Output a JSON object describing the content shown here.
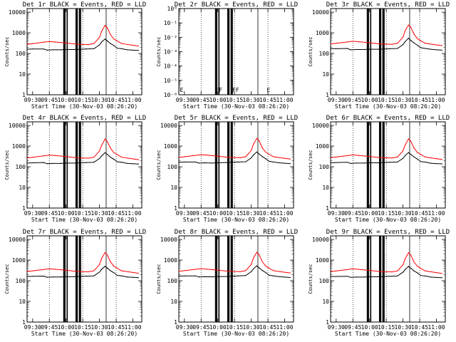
{
  "colors": {
    "background": "#ffffff",
    "events": "#000000",
    "lld": "#ff0000"
  },
  "chart_data": {
    "layout": "3x3 grid",
    "type": "line",
    "x_axis_label": "Start Time (30-Nov-03 08:26:20)",
    "y_axis_label": "Counts/sec",
    "x_ticks": [
      "09:30",
      "09:45",
      "10:00",
      "10:15",
      "10:30",
      "10:45",
      "11:00"
    ],
    "x_range": [
      "09:25",
      "11:08"
    ],
    "y_scale": "log",
    "y_range_standard": [
      1,
      15000
    ],
    "y_ticks_standard": [
      "1",
      "10",
      "100",
      "1000",
      "10000"
    ],
    "grid_lines": [
      "09:45",
      "10:15",
      "10:45"
    ],
    "legend": "in title",
    "panels": [
      {
        "title": "Det 1r BLACK = Events, RED = LLD",
        "y_ticks": [
          "1",
          "10",
          "100",
          "1000",
          "10000"
        ],
        "series": [
          {
            "name": "Events",
            "color": "#000000",
            "x": [
              "09:25",
              "09:30",
              "09:40",
              "09:43",
              "09:48",
              "09:55",
              "10:00",
              "10:08",
              "10:18",
              "10:25",
              "10:30",
              "10:32",
              "10:35",
              "10:37",
              "10:40",
              "10:43",
              "10:46",
              "10:50",
              "10:55",
              "11:00",
              "11:05"
            ],
            "values": [
              160,
              165,
              165,
              145,
              150,
              150,
              155,
              155,
              165,
              170,
              260,
              360,
              500,
              410,
              300,
              240,
              180,
              170,
              150,
              145,
              140
            ]
          },
          {
            "name": "LLD",
            "color": "#ff0000",
            "x": [
              "09:25",
              "09:30",
              "09:40",
              "09:45",
              "09:50",
              "10:00",
              "10:10",
              "10:20",
              "10:25",
              "10:30",
              "10:32",
              "10:35",
              "10:37",
              "10:40",
              "10:43",
              "10:46",
              "10:50",
              "11:00",
              "11:05"
            ],
            "values": [
              280,
              300,
              350,
              380,
              360,
              320,
              280,
              270,
              300,
              600,
              1200,
              2300,
              1800,
              800,
              500,
              400,
              300,
              250,
              230
            ]
          }
        ]
      },
      {
        "title": "Det 2r BLACK = Events, RED = LLD",
        "y_ticks": [
          "10⁻⁶",
          "10⁻⁵",
          "10⁻⁴",
          "10⁻³",
          "10⁻²",
          "10⁻¹",
          "10⁰"
        ],
        "series": [],
        "annotations": [
          "F",
          "F",
          "F",
          "F",
          "F",
          "F",
          "F",
          "F",
          "E",
          "E"
        ]
      },
      {
        "title": "Det 3r BLACK = Events, RED = LLD",
        "y_ticks": [
          "1",
          "10",
          "100",
          "1000",
          "10000"
        ],
        "series": [
          {
            "name": "Events",
            "color": "#000000",
            "x": [
              "09:25",
              "09:30",
              "09:40",
              "09:43",
              "09:48",
              "09:55",
              "10:00",
              "10:08",
              "10:18",
              "10:25",
              "10:30",
              "10:32",
              "10:35",
              "10:37",
              "10:40",
              "10:43",
              "10:46",
              "10:50",
              "10:55",
              "11:00",
              "11:05"
            ],
            "values": [
              170,
              170,
              175,
              150,
              155,
              155,
              160,
              160,
              170,
              175,
              270,
              380,
              550,
              430,
              320,
              250,
              190,
              175,
              160,
              150,
              145
            ]
          },
          {
            "name": "LLD",
            "color": "#ff0000",
            "x": [
              "09:25",
              "09:30",
              "09:40",
              "09:45",
              "09:50",
              "10:00",
              "10:10",
              "10:20",
              "10:25",
              "10:30",
              "10:32",
              "10:35",
              "10:37",
              "10:40",
              "10:43",
              "10:46",
              "10:50",
              "11:00",
              "11:05"
            ],
            "values": [
              290,
              310,
              360,
              390,
              370,
              330,
              290,
              280,
              310,
              620,
              1300,
              2400,
              1900,
              850,
              520,
              410,
              310,
              260,
              240
            ]
          }
        ]
      },
      {
        "title": "Det 4r BLACK = Events, RED = LLD",
        "y_ticks": [
          "1",
          "10",
          "100",
          "1000",
          "10000"
        ],
        "series": [
          {
            "name": "Events",
            "color": "#000000",
            "x": [
              "09:25",
              "09:30",
              "09:40",
              "09:43",
              "09:48",
              "09:55",
              "10:00",
              "10:08",
              "10:18",
              "10:25",
              "10:30",
              "10:32",
              "10:35",
              "10:37",
              "10:40",
              "10:43",
              "10:46",
              "10:50",
              "10:55",
              "11:00",
              "11:05"
            ],
            "values": [
              150,
              155,
              160,
              140,
              145,
              145,
              150,
              150,
              160,
              165,
              250,
              340,
              480,
              400,
              290,
              230,
              175,
              165,
              145,
              140,
              135
            ]
          },
          {
            "name": "LLD",
            "color": "#ff0000",
            "x": [
              "09:25",
              "09:30",
              "09:40",
              "09:45",
              "09:50",
              "10:00",
              "10:10",
              "10:20",
              "10:25",
              "10:30",
              "10:32",
              "10:35",
              "10:37",
              "10:40",
              "10:43",
              "10:46",
              "10:50",
              "11:00",
              "11:05"
            ],
            "values": [
              270,
              290,
              340,
              370,
              350,
              310,
              270,
              260,
              290,
              580,
              1100,
              2200,
              1700,
              780,
              480,
              390,
              290,
              240,
              220
            ]
          }
        ]
      },
      {
        "title": "Det 5r BLACK = Events, RED = LLD",
        "y_ticks": [
          "1",
          "10",
          "100",
          "1000",
          "10000"
        ],
        "series": [
          {
            "name": "Events",
            "color": "#000000",
            "x": [
              "09:25",
              "09:30",
              "09:40",
              "09:43",
              "09:48",
              "09:55",
              "10:00",
              "10:08",
              "10:18",
              "10:25",
              "10:30",
              "10:32",
              "10:35",
              "10:37",
              "10:40",
              "10:43",
              "10:46",
              "10:50",
              "10:55",
              "11:00",
              "11:05"
            ],
            "values": [
              165,
              170,
              170,
              150,
              155,
              150,
              155,
              160,
              170,
              175,
              270,
              370,
              520,
              420,
              310,
              245,
              185,
              170,
              155,
              148,
              142
            ]
          },
          {
            "name": "LLD",
            "color": "#ff0000",
            "x": [
              "09:25",
              "09:30",
              "09:40",
              "09:45",
              "09:50",
              "10:00",
              "10:10",
              "10:20",
              "10:25",
              "10:30",
              "10:32",
              "10:35",
              "10:37",
              "10:40",
              "10:43",
              "10:46",
              "10:50",
              "11:00",
              "11:05"
            ],
            "values": [
              285,
              305,
              355,
              385,
              365,
              325,
              285,
              275,
              305,
              610,
              1250,
              2350,
              1850,
              820,
              510,
              405,
              305,
              255,
              235
            ]
          }
        ]
      },
      {
        "title": "Det 6r BLACK = Events, RED = LLD",
        "y_ticks": [
          "1",
          "10",
          "100",
          "1000",
          "10000"
        ],
        "series": [
          {
            "name": "Events",
            "color": "#000000",
            "x": [
              "09:25",
              "09:30",
              "09:40",
              "09:43",
              "09:48",
              "09:55",
              "10:00",
              "10:08",
              "10:18",
              "10:25",
              "10:30",
              "10:32",
              "10:35",
              "10:37",
              "10:40",
              "10:43",
              "10:46",
              "10:50",
              "10:55",
              "11:00",
              "11:05"
            ],
            "values": [
              155,
              160,
              165,
              145,
              150,
              150,
              155,
              155,
              165,
              170,
              255,
              350,
              490,
              405,
              295,
              235,
              178,
              168,
              148,
              143,
              138
            ]
          },
          {
            "name": "LLD",
            "color": "#ff0000",
            "x": [
              "09:25",
              "09:30",
              "09:40",
              "09:45",
              "09:50",
              "10:00",
              "10:10",
              "10:20",
              "10:25",
              "10:30",
              "10:32",
              "10:35",
              "10:37",
              "10:40",
              "10:43",
              "10:46",
              "10:50",
              "11:00",
              "11:05"
            ],
            "values": [
              275,
              295,
              345,
              375,
              355,
              315,
              275,
              265,
              295,
              590,
              1150,
              2250,
              1750,
              790,
              490,
              395,
              295,
              245,
              225
            ]
          }
        ]
      },
      {
        "title": "Det 7r BLACK = Events, RED = LLD",
        "y_ticks": [
          "1",
          "10",
          "100",
          "1000",
          "10000"
        ],
        "series": [
          {
            "name": "Events",
            "color": "#000000",
            "x": [
              "09:25",
              "09:30",
              "09:40",
              "09:43",
              "09:48",
              "09:55",
              "10:00",
              "10:08",
              "10:18",
              "10:25",
              "10:30",
              "10:32",
              "10:35",
              "10:37",
              "10:40",
              "10:43",
              "10:46",
              "10:50",
              "10:55",
              "11:00",
              "11:05"
            ],
            "values": [
              160,
              165,
              168,
              148,
              152,
              152,
              157,
              157,
              167,
              172,
              262,
              362,
              505,
              412,
              302,
              242,
              182,
              172,
              152,
              146,
              141
            ]
          },
          {
            "name": "LLD",
            "color": "#ff0000",
            "x": [
              "09:25",
              "09:30",
              "09:40",
              "09:45",
              "09:50",
              "10:00",
              "10:10",
              "10:20",
              "10:25",
              "10:30",
              "10:32",
              "10:35",
              "10:37",
              "10:40",
              "10:43",
              "10:46",
              "10:50",
              "11:00",
              "11:05"
            ],
            "values": [
              282,
              302,
              352,
              382,
              362,
              322,
              282,
              272,
              302,
              605,
              1220,
              2320,
              1820,
              810,
              505,
              402,
              302,
              252,
              232
            ]
          }
        ]
      },
      {
        "title": "Det 8r BLACK = Events, RED = LLD",
        "y_ticks": [
          "1",
          "10",
          "100",
          "1000",
          "10000"
        ],
        "series": [
          {
            "name": "Events",
            "color": "#000000",
            "x": [
              "09:25",
              "09:30",
              "09:40",
              "09:43",
              "09:48",
              "09:55",
              "10:00",
              "10:08",
              "10:18",
              "10:25",
              "10:30",
              "10:32",
              "10:35",
              "10:37",
              "10:40",
              "10:43",
              "10:46",
              "10:50",
              "10:55",
              "11:00",
              "11:05"
            ],
            "values": [
              168,
              172,
              172,
              152,
              157,
              155,
              158,
              162,
              172,
              178,
              275,
              378,
              530,
              425,
              315,
              248,
              188,
              173,
              158,
              150,
              144
            ]
          },
          {
            "name": "LLD",
            "color": "#ff0000",
            "x": [
              "09:25",
              "09:30",
              "09:40",
              "09:45",
              "09:50",
              "10:00",
              "10:10",
              "10:20",
              "10:25",
              "10:30",
              "10:32",
              "10:35",
              "10:37",
              "10:40",
              "10:43",
              "10:46",
              "10:50",
              "11:00",
              "11:05"
            ],
            "values": [
              288,
              308,
              358,
              388,
              368,
              328,
              288,
              278,
              308,
              615,
              1280,
              2380,
              1880,
              830,
              515,
              408,
              308,
              258,
              238
            ]
          }
        ]
      },
      {
        "title": "Det 9r BLACK = Events, RED = LLD",
        "y_ticks": [
          "1",
          "10",
          "100",
          "1000",
          "10000"
        ],
        "series": [
          {
            "name": "Events",
            "color": "#000000",
            "x": [
              "09:25",
              "09:30",
              "09:40",
              "09:43",
              "09:48",
              "09:55",
              "10:00",
              "10:08",
              "10:18",
              "10:25",
              "10:30",
              "10:32",
              "10:35",
              "10:37",
              "10:40",
              "10:43",
              "10:46",
              "10:50",
              "10:55",
              "11:00",
              "11:05"
            ],
            "values": [
              158,
              162,
              166,
              146,
              151,
              151,
              156,
              156,
              166,
              171,
              258,
              355,
              495,
              408,
              298,
              238,
              180,
              170,
              150,
              145,
              139
            ]
          },
          {
            "name": "LLD",
            "color": "#ff0000",
            "x": [
              "09:25",
              "09:30",
              "09:40",
              "09:45",
              "09:50",
              "10:00",
              "10:10",
              "10:20",
              "10:25",
              "10:30",
              "10:32",
              "10:35",
              "10:37",
              "10:40",
              "10:43",
              "10:46",
              "10:50",
              "11:00",
              "11:05"
            ],
            "values": [
              278,
              298,
              348,
              378,
              358,
              318,
              278,
              268,
              298,
              595,
              1180,
              2280,
              1780,
              800,
              500,
              398,
              298,
              248,
              228
            ]
          }
        ]
      }
    ]
  }
}
